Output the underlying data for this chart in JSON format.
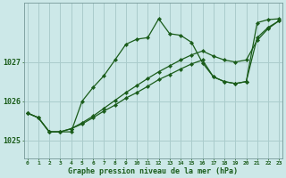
{
  "xlabel": "Graphe pression niveau de la mer (hPa)",
  "background_color": "#cce8e8",
  "grid_color": "#aacccc",
  "line_color": "#1a5c1a",
  "x_ticks": [
    0,
    1,
    2,
    3,
    4,
    5,
    6,
    7,
    8,
    9,
    10,
    11,
    12,
    13,
    14,
    15,
    16,
    17,
    18,
    19,
    20,
    21,
    22,
    23
  ],
  "y_ticks": [
    1025,
    1026,
    1027
  ],
  "ylim": [
    1024.55,
    1028.5
  ],
  "xlim": [
    -0.3,
    23.3
  ],
  "series1": [
    1025.7,
    1025.58,
    1025.22,
    1025.22,
    1025.22,
    1026.0,
    1026.35,
    1026.65,
    1027.05,
    1027.45,
    1027.58,
    1027.62,
    1028.1,
    1027.72,
    1027.68,
    1027.5,
    1026.98,
    1026.62,
    1026.5,
    1026.45,
    1026.5,
    1028.0,
    1028.08,
    1028.1
  ],
  "series2": [
    1025.7,
    1025.58,
    1025.22,
    1025.22,
    1025.3,
    1025.42,
    1025.58,
    1025.75,
    1025.9,
    1026.08,
    1026.22,
    1026.38,
    1026.55,
    1026.68,
    1026.82,
    1026.95,
    1027.05,
    1026.62,
    1026.5,
    1026.45,
    1026.5,
    1027.62,
    1027.88,
    1028.05
  ],
  "series3": [
    1025.7,
    1025.58,
    1025.22,
    1025.22,
    1025.3,
    1025.45,
    1025.62,
    1025.82,
    1026.02,
    1026.22,
    1026.4,
    1026.58,
    1026.75,
    1026.9,
    1027.05,
    1027.18,
    1027.28,
    1027.15,
    1027.05,
    1027.0,
    1027.05,
    1027.55,
    1027.85,
    1028.05
  ],
  "xlabel_fontsize": 6.0,
  "ytick_fontsize": 6.0,
  "xtick_fontsize": 4.5
}
